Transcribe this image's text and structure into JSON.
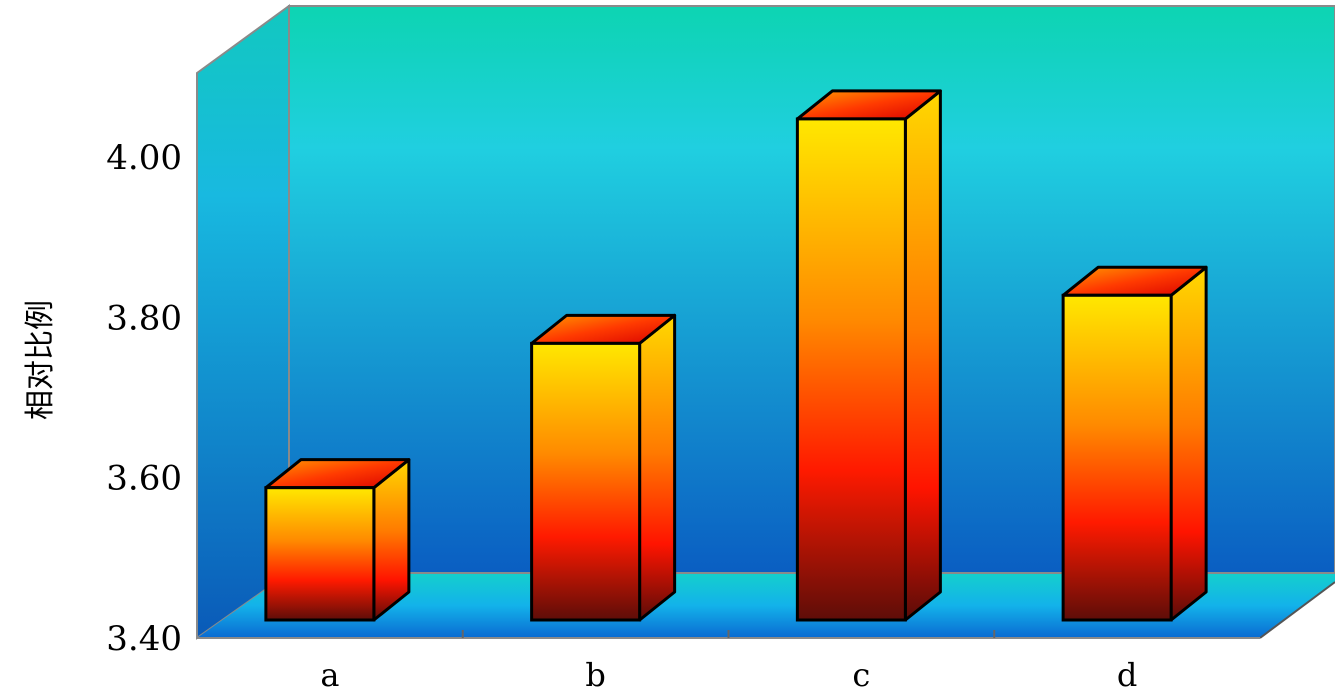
{
  "chart_data": {
    "type": "bar",
    "style": "3d-column",
    "title": "",
    "xlabel": "",
    "ylabel": "相对比例",
    "categories": [
      "a",
      "b",
      "c",
      "d"
    ],
    "values": [
      3.59,
      3.77,
      4.05,
      3.83
    ],
    "ylim": [
      3.4,
      4.1
    ],
    "yticks": [
      "3.40",
      "3.60",
      "3.80",
      "4.00"
    ],
    "grid": false,
    "legend": "none",
    "colors": {
      "wall_top": "#0dd4b2",
      "wall_mid": "#20cfe0",
      "wall_bottom": "#0a5ec2",
      "floor": "#12b6e8",
      "bar_front_top": "#ffe800",
      "bar_front_mid": "#ff8a00",
      "bar_front_low": "#ff1a00",
      "bar_front_bottom": "#5e0d08",
      "bar_top_face": "#ff5a00"
    }
  }
}
